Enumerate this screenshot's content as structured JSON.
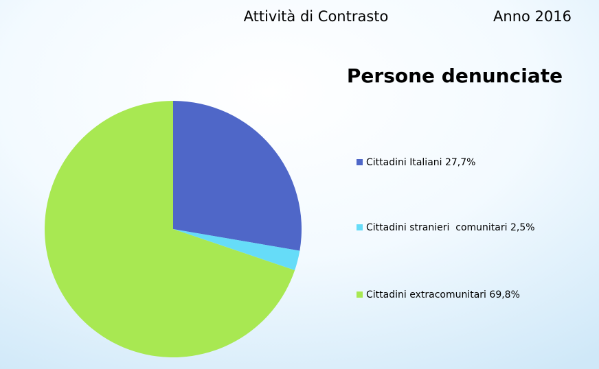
{
  "header": {
    "title": "Attività di Contrasto",
    "year": "Anno 2016"
  },
  "chart_data": {
    "type": "pie",
    "title": "Persone denunciate",
    "categories": [
      "Cittadini Italiani",
      "Cittadini stranieri  comunitari",
      "Cittadini extracomunitari"
    ],
    "values": [
      27.7,
      2.5,
      69.8
    ],
    "value_labels": [
      "27,7%",
      "2,5%",
      "69,8%"
    ],
    "colors": [
      "#4f67c8",
      "#66dcf8",
      "#a8e852"
    ],
    "legend": "right"
  }
}
